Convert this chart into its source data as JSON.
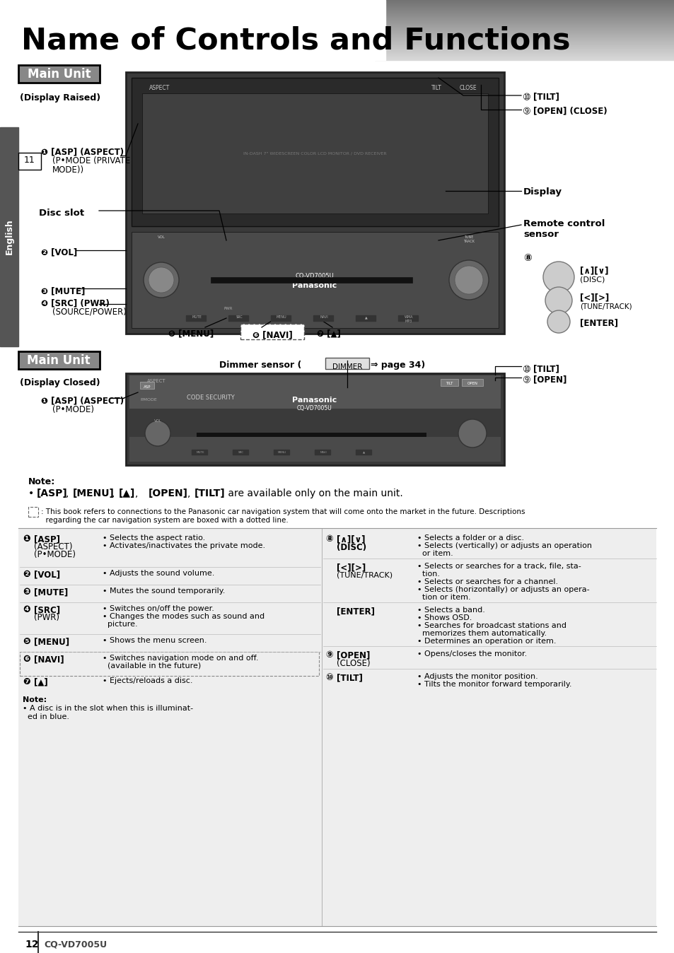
{
  "title": "Name of Controls and Functions",
  "title_fontsize": 30,
  "background_color": "#ffffff",
  "page_number": "12",
  "model": "CQ-VD7005U",
  "english_label": "English",
  "page_ref": "11"
}
